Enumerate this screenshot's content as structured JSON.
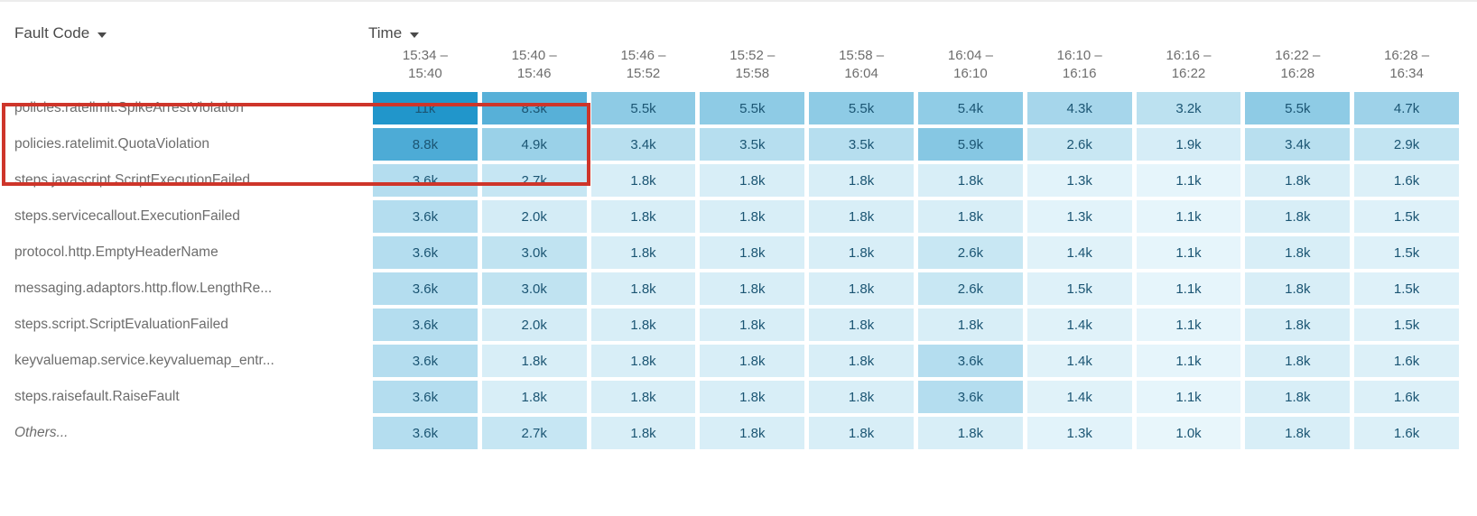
{
  "controls": {
    "row_dimension_label": "Fault Code",
    "column_dimension_label": "Time"
  },
  "chart_data": {
    "type": "heatmap",
    "row_axis_label": "Fault Code",
    "column_axis_label": "Time",
    "columns": [
      "15:34 – 15:40",
      "15:40 – 15:46",
      "15:46 – 15:52",
      "15:52 – 15:58",
      "15:58 – 16:04",
      "16:04 – 16:10",
      "16:10 – 16:16",
      "16:16 – 16:22",
      "16:22 – 16:28",
      "16:28 – 16:34"
    ],
    "rows": [
      {
        "label": "policies.ratelimit.SpikeArrestViolation",
        "italic": false,
        "values": [
          "11k",
          "8.3k",
          "5.5k",
          "5.5k",
          "5.5k",
          "5.4k",
          "4.3k",
          "3.2k",
          "5.5k",
          "4.7k"
        ]
      },
      {
        "label": "policies.ratelimit.QuotaViolation",
        "italic": false,
        "values": [
          "8.8k",
          "4.9k",
          "3.4k",
          "3.5k",
          "3.5k",
          "5.9k",
          "2.6k",
          "1.9k",
          "3.4k",
          "2.9k"
        ]
      },
      {
        "label": "steps.javascript.ScriptExecutionFailed",
        "italic": false,
        "values": [
          "3.6k",
          "2.7k",
          "1.8k",
          "1.8k",
          "1.8k",
          "1.8k",
          "1.3k",
          "1.1k",
          "1.8k",
          "1.6k"
        ]
      },
      {
        "label": "steps.servicecallout.ExecutionFailed",
        "italic": false,
        "values": [
          "3.6k",
          "2.0k",
          "1.8k",
          "1.8k",
          "1.8k",
          "1.8k",
          "1.3k",
          "1.1k",
          "1.8k",
          "1.5k"
        ]
      },
      {
        "label": "protocol.http.EmptyHeaderName",
        "italic": false,
        "values": [
          "3.6k",
          "3.0k",
          "1.8k",
          "1.8k",
          "1.8k",
          "2.6k",
          "1.4k",
          "1.1k",
          "1.8k",
          "1.5k"
        ]
      },
      {
        "label": "messaging.adaptors.http.flow.LengthRe...",
        "italic": false,
        "values": [
          "3.6k",
          "3.0k",
          "1.8k",
          "1.8k",
          "1.8k",
          "2.6k",
          "1.5k",
          "1.1k",
          "1.8k",
          "1.5k"
        ]
      },
      {
        "label": "steps.script.ScriptEvaluationFailed",
        "italic": false,
        "values": [
          "3.6k",
          "2.0k",
          "1.8k",
          "1.8k",
          "1.8k",
          "1.8k",
          "1.4k",
          "1.1k",
          "1.8k",
          "1.5k"
        ]
      },
      {
        "label": "keyvaluemap.service.keyvaluemap_entr...",
        "italic": false,
        "values": [
          "3.6k",
          "1.8k",
          "1.8k",
          "1.8k",
          "1.8k",
          "3.6k",
          "1.4k",
          "1.1k",
          "1.8k",
          "1.6k"
        ]
      },
      {
        "label": "steps.raisefault.RaiseFault",
        "italic": false,
        "values": [
          "3.6k",
          "1.8k",
          "1.8k",
          "1.8k",
          "1.8k",
          "3.6k",
          "1.4k",
          "1.1k",
          "1.8k",
          "1.6k"
        ]
      },
      {
        "label": "Others...",
        "italic": true,
        "values": [
          "3.6k",
          "2.7k",
          "1.8k",
          "1.8k",
          "1.8k",
          "1.8k",
          "1.3k",
          "1.0k",
          "1.8k",
          "1.6k"
        ]
      }
    ],
    "color_scale": {
      "min_value": 1000,
      "max_value": 11000,
      "min_color": "#e8f6fb",
      "max_color": "#2196cb"
    }
  },
  "annotation": {
    "highlight_box": {
      "color": "#ce352a",
      "rows_covered": 2,
      "data_columns_covered": 2
    }
  }
}
